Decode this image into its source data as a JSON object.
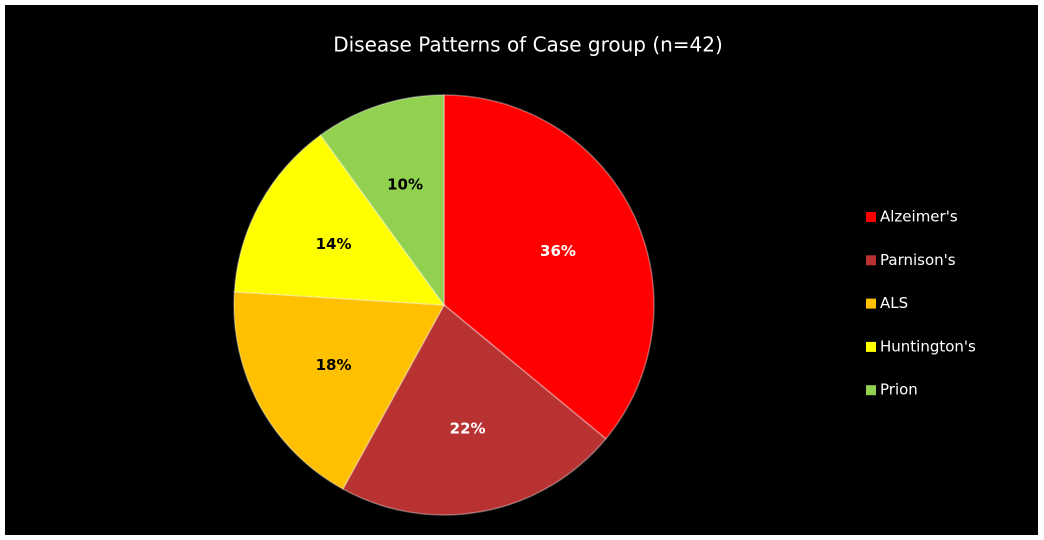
{
  "chart_data": {
    "type": "pie",
    "title": "Disease Patterns of Case group (n=42)",
    "categories": [
      "Alzeimer's",
      "Parnison's",
      "ALS",
      "Huntington's",
      "Prion"
    ],
    "values": [
      36,
      22,
      18,
      14,
      10
    ],
    "value_labels": [
      "36%",
      "22%",
      "18%",
      "14%",
      "10%"
    ],
    "colors": [
      "#ff0000",
      "#b83232",
      "#ffc000",
      "#ffff00",
      "#92d050"
    ],
    "legend": "right"
  }
}
